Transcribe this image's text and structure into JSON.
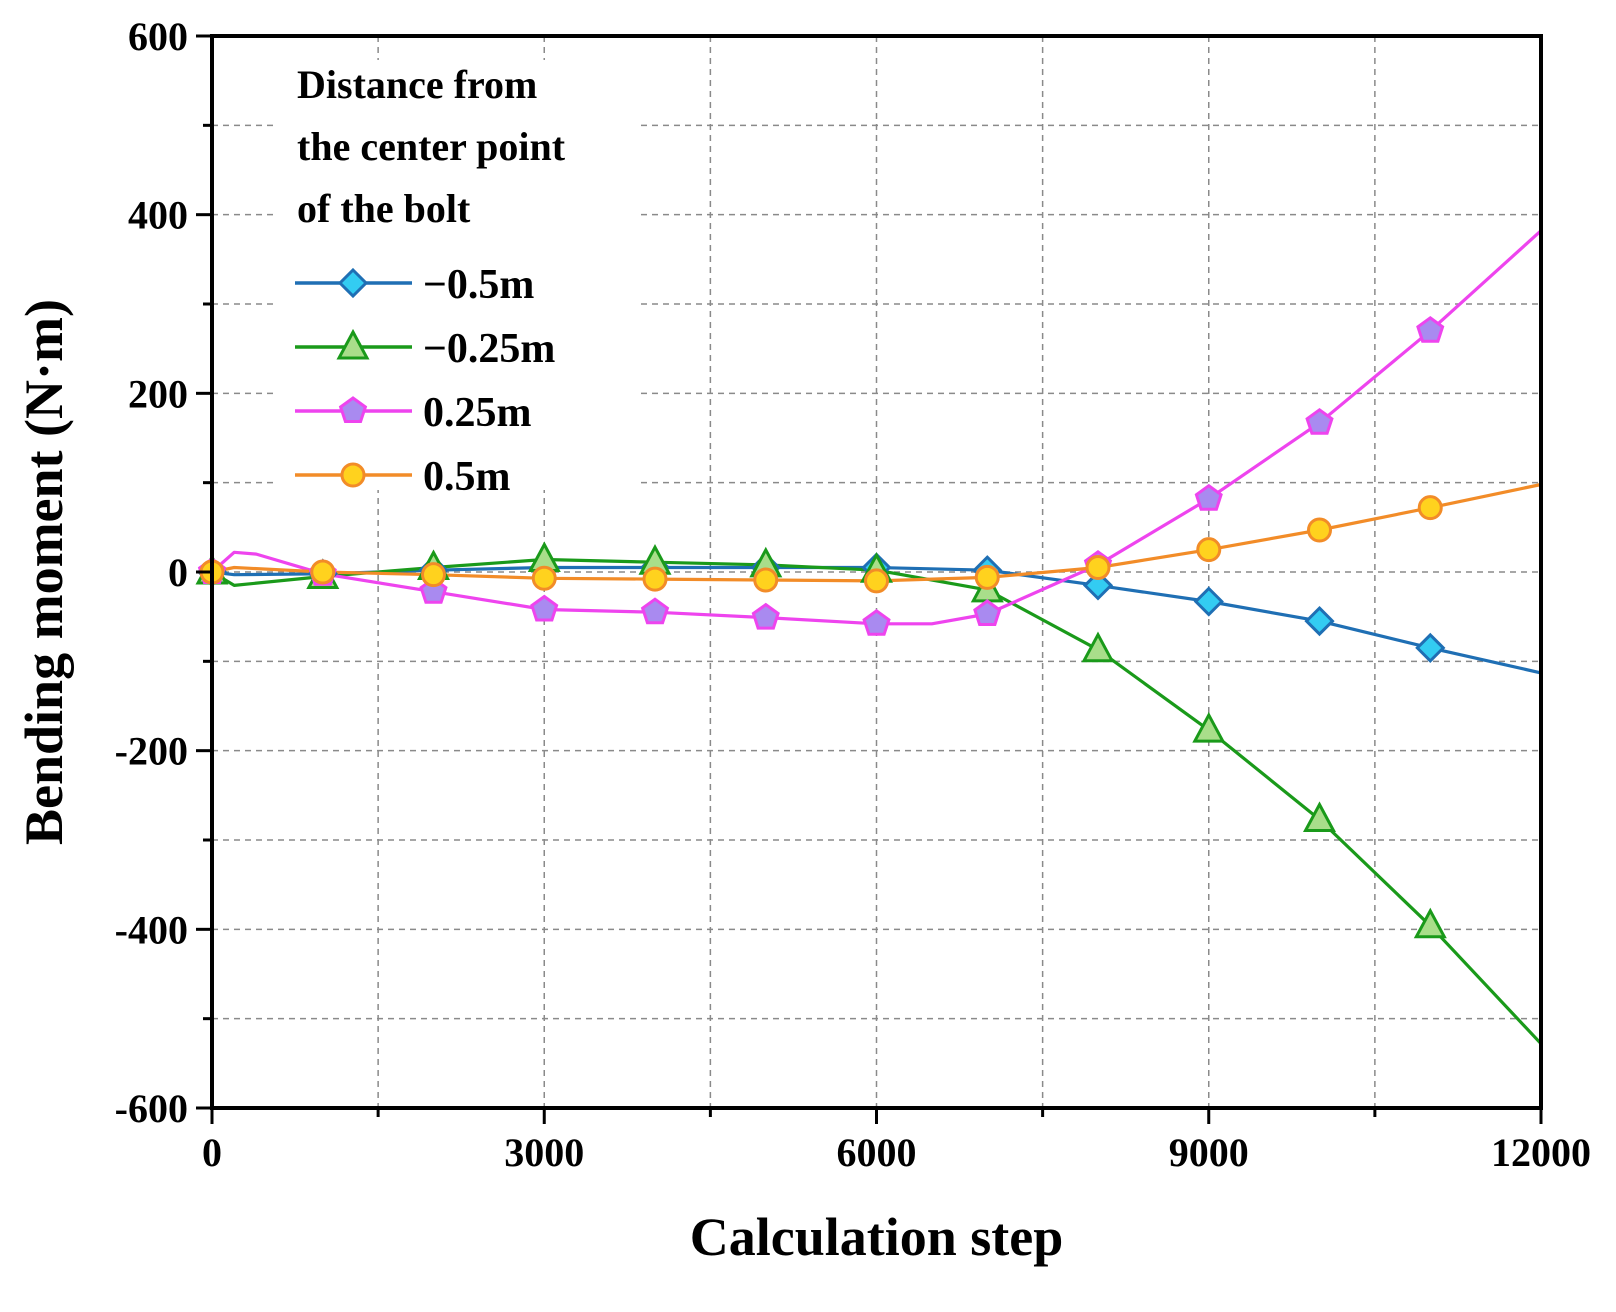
{
  "chart_data": {
    "type": "line",
    "title": "",
    "xlabel": "Calculation step",
    "ylabel": "Bending moment (N·m)",
    "xlim": [
      0,
      12000
    ],
    "ylim": [
      -600,
      600
    ],
    "xticks": [
      0,
      3000,
      6000,
      9000,
      12000
    ],
    "yticks": [
      600,
      400,
      200,
      0,
      -200,
      -400,
      -600
    ],
    "grid": true,
    "legend": {
      "title": [
        "Distance from",
        "the center point",
        "of the bolt"
      ],
      "placement": "top-left"
    },
    "series": [
      {
        "name": "−0.5m",
        "color": "#1f6fb4",
        "marker": "diamond",
        "marker_fill": "#33ccf2",
        "x": [
          0,
          200,
          1000,
          2000,
          3000,
          4000,
          5000,
          6000,
          7000,
          8000,
          9000,
          10000,
          11000,
          12000
        ],
        "values": [
          0,
          -3,
          -2,
          2,
          5,
          5,
          5,
          5,
          2,
          -15,
          -33,
          -55,
          -85,
          -113
        ]
      },
      {
        "name": "−0.25m",
        "color": "#1a9a1a",
        "marker": "triangle",
        "marker_fill": "#a9de8a",
        "x": [
          0,
          200,
          1000,
          2000,
          3000,
          4000,
          5000,
          6000,
          7000,
          8000,
          9000,
          10000,
          11000,
          12000
        ],
        "values": [
          0,
          -15,
          -5,
          5,
          14,
          11,
          8,
          2,
          -20,
          -87,
          -177,
          -277,
          -396,
          -528
        ]
      },
      {
        "name": "0.25m",
        "color": "#ee44ee",
        "marker": "pentagon",
        "marker_fill": "#a98af0",
        "x": [
          0,
          200,
          400,
          1000,
          2000,
          3000,
          4000,
          5000,
          6000,
          6500,
          7000,
          8000,
          9000,
          10000,
          11000,
          12000
        ],
        "values": [
          0,
          22,
          20,
          -2,
          -22,
          -42,
          -45,
          -51,
          -58,
          -58,
          -47,
          8,
          82,
          167,
          270,
          382
        ]
      },
      {
        "name": "0.5m",
        "color": "#f28c28",
        "marker": "circle",
        "marker_fill": "#ffd21e",
        "x": [
          0,
          200,
          1000,
          2000,
          3000,
          4000,
          5000,
          6000,
          7000,
          8000,
          9000,
          10000,
          11000,
          12000
        ],
        "values": [
          0,
          5,
          0,
          -3,
          -7,
          -8,
          -9,
          -10,
          -6,
          5,
          25,
          47,
          72,
          98
        ]
      }
    ],
    "marker_x": [
      0,
      1000,
      2000,
      3000,
      4000,
      5000,
      6000,
      7000,
      8000,
      9000,
      10000,
      11000
    ]
  }
}
